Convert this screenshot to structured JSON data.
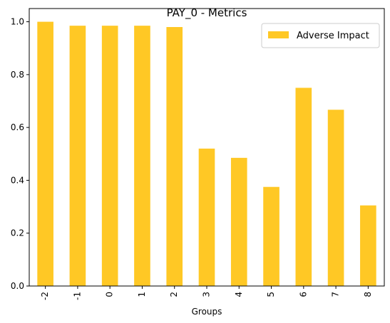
{
  "chart_data": {
    "type": "bar",
    "title": "PAY_0 - Metrics",
    "xlabel": "Groups",
    "ylabel": "",
    "categories": [
      "-2",
      "-1",
      "0",
      "1",
      "2",
      "3",
      "4",
      "5",
      "6",
      "7",
      "8"
    ],
    "series": [
      {
        "name": "Adverse Impact",
        "color": "#FFC825",
        "values": [
          1.0,
          0.985,
          0.985,
          0.985,
          0.98,
          0.52,
          0.485,
          0.375,
          0.75,
          0.667,
          0.305
        ]
      }
    ],
    "ylim": [
      0,
      1.05
    ],
    "yticks": [
      "0.0",
      "0.2",
      "0.4",
      "0.6",
      "0.8",
      "1.0"
    ],
    "grid": false,
    "legend_position": "top-right"
  }
}
